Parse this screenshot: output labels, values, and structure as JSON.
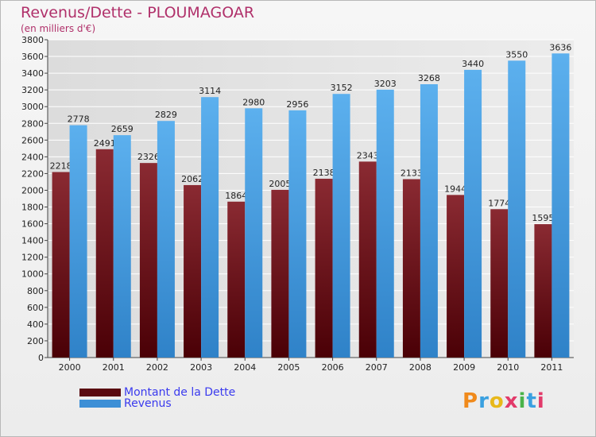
{
  "chart": {
    "title": "Revenus/Dette - PLOUMAGOAR",
    "subtitle": "(en milliers d'€)"
  },
  "legend": {
    "dette_label": "Montant de la Dette",
    "revenus_label": "Revenus"
  },
  "logo": {
    "text": "Proxiti"
  },
  "colors": {
    "dette": "#7a1a22",
    "revenus": "#4da3e6",
    "title": "#b0306a",
    "legend_text": "#3a3aee",
    "grid": "#ffffff"
  },
  "chart_data": {
    "type": "bar",
    "title": "Revenus/Dette - PLOUMAGOAR",
    "subtitle": "(en milliers d'€)",
    "categories": [
      "2000",
      "2001",
      "2002",
      "2003",
      "2004",
      "2005",
      "2006",
      "2007",
      "2008",
      "2009",
      "2010",
      "2011"
    ],
    "series": [
      {
        "name": "Montant de la Dette",
        "values": [
          2218,
          2491,
          2326,
          2062,
          1864,
          2005,
          2138,
          2343,
          2133,
          1944,
          1774,
          1595
        ]
      },
      {
        "name": "Revenus",
        "values": [
          2778,
          2659,
          2829,
          3114,
          2980,
          2956,
          3152,
          3203,
          3268,
          3440,
          3550,
          3636
        ]
      }
    ],
    "ylim": [
      0,
      3800
    ],
    "yticks": [
      0,
      200,
      400,
      600,
      800,
      1000,
      1200,
      1400,
      1600,
      1800,
      2000,
      2200,
      2400,
      2600,
      2800,
      3000,
      3200,
      3400,
      3600,
      3800
    ],
    "grid": true,
    "legend_position": "bottom-left"
  }
}
